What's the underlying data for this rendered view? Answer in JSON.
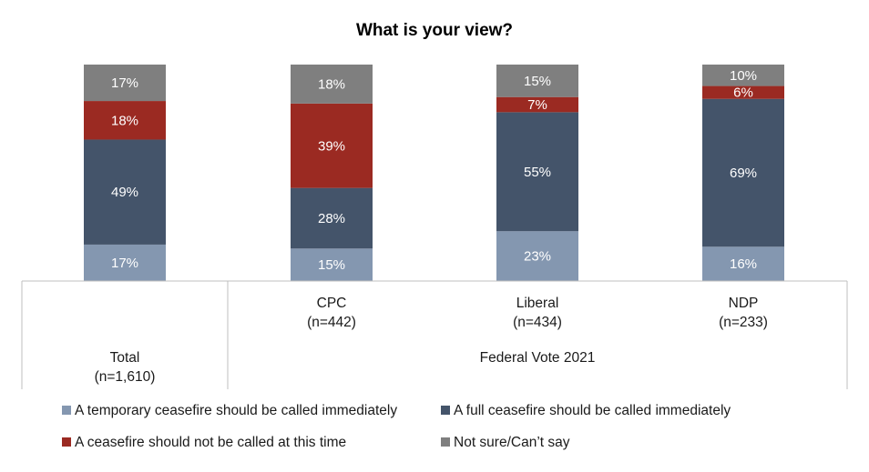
{
  "chart_data": {
    "type": "bar",
    "stacked": true,
    "normalized_percent": true,
    "title": "What is your view?",
    "categories": [
      {
        "name": "Total",
        "n": "(n=1,610)",
        "group": ""
      },
      {
        "name": "CPC",
        "n": "(n=442)",
        "group": "Federal Vote 2021"
      },
      {
        "name": "Liberal",
        "n": "(n=434)",
        "group": "Federal Vote 2021"
      },
      {
        "name": "NDP",
        "n": "(n=233)",
        "group": "Federal Vote 2021"
      }
    ],
    "group_label": "Federal Vote 2021",
    "series": [
      {
        "name": "A temporary ceasefire should be called immediately",
        "color": "#8497b0",
        "values": [
          17,
          15,
          23,
          16
        ],
        "labels": [
          "17%",
          "15%",
          "23%",
          "16%"
        ]
      },
      {
        "name": "A full ceasefire should be called immediately",
        "color": "#44546a",
        "values": [
          49,
          28,
          55,
          69
        ],
        "labels": [
          "49%",
          "28%",
          "55%",
          "69%"
        ]
      },
      {
        "name": "A ceasefire should not be called at this time",
        "color": "#9b2a22",
        "values": [
          18,
          39,
          7,
          6
        ],
        "labels": [
          "18%",
          "39%",
          "7%",
          "6%"
        ]
      },
      {
        "name": "Not sure/Can’t say",
        "color": "#7f7f7f",
        "values": [
          17,
          18,
          15,
          10
        ],
        "labels": [
          "17%",
          "18%",
          "15%",
          "10%"
        ]
      }
    ],
    "legend_position": "bottom",
    "grid": false
  }
}
